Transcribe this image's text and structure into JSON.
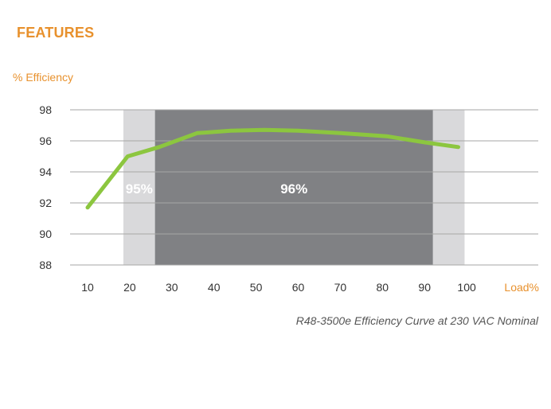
{
  "heading": "FEATURES",
  "colors": {
    "accent": "#e8912d",
    "line": "#8cc63f",
    "band_light": "#d9d9db",
    "band_dark": "#808184",
    "grid": "#a6a6a6"
  },
  "chart_data": {
    "type": "line",
    "title": "",
    "caption": "R48-3500e Efficiency Curve at 230 VAC Nominal",
    "ylabel": "% Efficiency",
    "xlabel": "Load%",
    "ylim": [
      88,
      98
    ],
    "y_ticks": [
      "98",
      "96",
      "94",
      "92",
      "90",
      "88"
    ],
    "x_ticks": [
      "10",
      "20",
      "30",
      "40",
      "50",
      "60",
      "70",
      "80",
      "90",
      "100"
    ],
    "grid": "horizontal",
    "x": [
      10,
      19.5,
      27,
      36,
      44,
      52,
      60,
      70,
      81,
      90,
      98
    ],
    "y": [
      91.7,
      95.0,
      95.6,
      96.5,
      96.65,
      96.7,
      96.65,
      96.5,
      96.3,
      95.9,
      95.6
    ],
    "bands": [
      {
        "from": 18.5,
        "to": 26,
        "label": "95%",
        "shade": "light"
      },
      {
        "from": 26,
        "to": 92,
        "label": "96%",
        "shade": "dark"
      },
      {
        "from": 92,
        "to": 99.5,
        "label": "",
        "shade": "light"
      }
    ]
  }
}
